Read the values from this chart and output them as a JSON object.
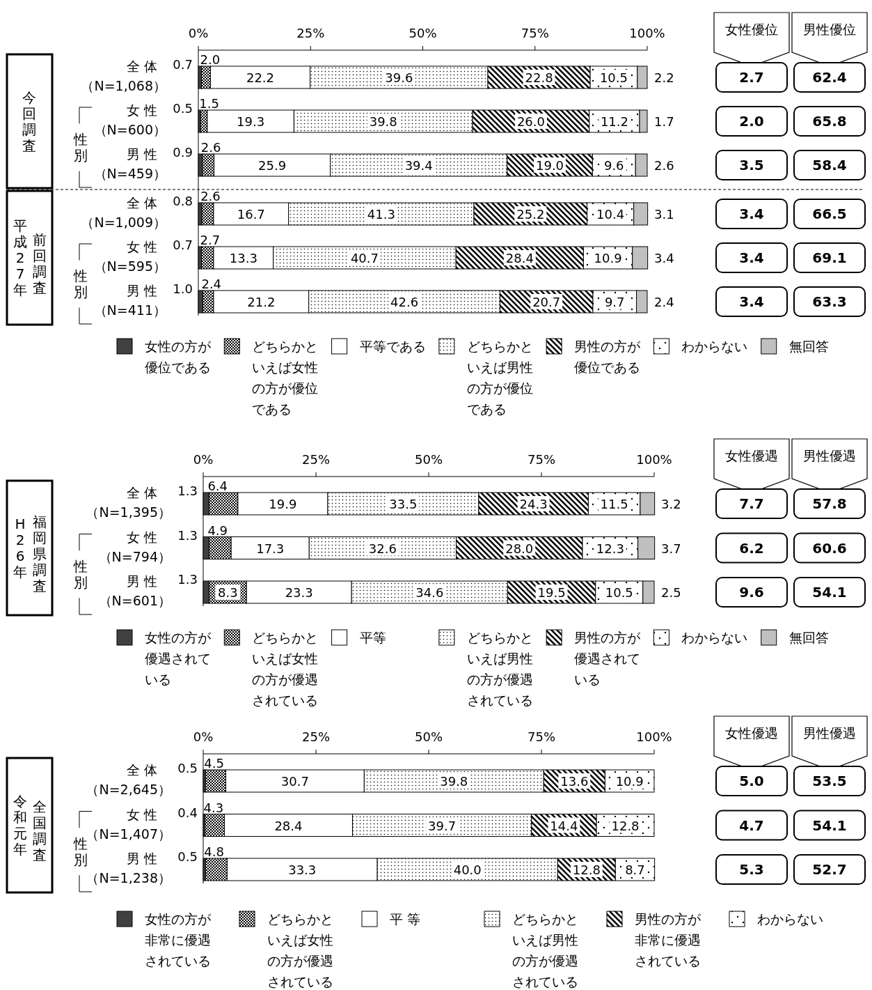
{
  "chart_data": [
    {
      "type": "bar",
      "orientation": "horizontal",
      "stacked": true,
      "legend": "bottom",
      "categories": [
        "全 体（N=1,068）",
        "女 性（N=600）",
        "男 性（N=459）",
        "全 体（N=1,009）",
        "女 性（N=595）",
        "男 性（N=411）"
      ],
      "xlim": [
        0,
        100
      ],
      "xticks": [
        {
          "value": 0,
          "label": "0%"
        },
        {
          "value": 25,
          "label": "25%"
        },
        {
          "value": 50,
          "label": "50%"
        },
        {
          "value": 75,
          "label": "75%"
        },
        {
          "value": 100,
          "label": "100%"
        }
      ],
      "series": [
        {
          "name": "女性の方が優位である",
          "color": "#404040",
          "values": [
            0.7,
            0.5,
            0.9,
            0.8,
            0.7,
            1.0
          ],
          "value_labels": [
            "0.7",
            "0.5",
            "0.9",
            "0.8",
            "0.7",
            "1.0"
          ]
        },
        {
          "name": "どちらかといえば女性の方が優位である",
          "color": "#000000",
          "values": [
            2.0,
            1.5,
            2.6,
            2.6,
            2.7,
            2.4
          ],
          "value_labels": [
            "2.0",
            "1.5",
            "2.6",
            "2.6",
            "2.7",
            "2.4"
          ]
        },
        {
          "name": "平等である",
          "color": "#ffffff",
          "values": [
            22.2,
            19.3,
            25.9,
            16.7,
            13.3,
            21.2
          ],
          "value_labels": [
            "22.2",
            "19.3",
            "25.9",
            "16.7",
            "13.3",
            "21.2"
          ]
        },
        {
          "name": "どちらかといえば男性の方が優位である",
          "color": "#000000",
          "values": [
            39.6,
            39.8,
            39.4,
            41.3,
            40.7,
            42.6
          ],
          "value_labels": [
            "39.6",
            "39.8",
            "39.4",
            "41.3",
            "40.7",
            "42.6"
          ]
        },
        {
          "name": "男性の方が優位である",
          "color": "#000000",
          "values": [
            22.8,
            26.0,
            19.0,
            25.2,
            28.4,
            20.7
          ],
          "value_labels": [
            "22.8",
            "26.0",
            "19.0",
            "25.2",
            "28.4",
            "20.7"
          ]
        },
        {
          "name": "わからない",
          "color": "#000000",
          "values": [
            10.5,
            11.2,
            9.6,
            10.4,
            10.9,
            9.7
          ],
          "value_labels": [
            "10.5",
            "11.2",
            "9.6",
            "10.4",
            "10.9",
            "9.7"
          ]
        },
        {
          "name": "無回答",
          "color": "#c0c0c0",
          "values": [
            2.2,
            1.7,
            2.6,
            3.1,
            3.4,
            2.4
          ],
          "value_labels": [
            "2.2",
            "1.7",
            "2.6",
            "3.1",
            "3.4",
            "2.4"
          ]
        }
      ],
      "annotations": [
        "今回調査",
        "平成27年",
        "前回調査",
        "性別",
        "性別",
        "女性優位",
        "男性優位",
        "2.7",
        "62.4",
        "2.0",
        "65.8",
        "3.5",
        "58.4",
        "3.4",
        "66.5",
        "3.4",
        "69.1",
        "3.4",
        "63.3"
      ]
    },
    {
      "type": "bar",
      "orientation": "horizontal",
      "stacked": true,
      "legend": "bottom",
      "categories": [
        "全 体（N=1,395）",
        "女 性（N=794）",
        "男 性（N=601）"
      ],
      "xlim": [
        0,
        100
      ],
      "xticks": [
        {
          "value": 0,
          "label": "0%"
        },
        {
          "value": 25,
          "label": "25%"
        },
        {
          "value": 50,
          "label": "50%"
        },
        {
          "value": 75,
          "label": "75%"
        },
        {
          "value": 100,
          "label": "100%"
        }
      ],
      "series": [
        {
          "name": "女性の方が優遇されている",
          "color": "#404040",
          "values": [
            1.3,
            1.3,
            1.3
          ],
          "value_labels": [
            "1.3",
            "1.3",
            "1.3"
          ]
        },
        {
          "name": "どちらかといえば女性の方が優遇されている",
          "color": "#000000",
          "values": [
            6.4,
            4.9,
            8.3
          ],
          "value_labels": [
            "6.4",
            "4.9",
            "8.3"
          ]
        },
        {
          "name": "平等",
          "color": "#ffffff",
          "values": [
            19.9,
            17.3,
            23.3
          ],
          "value_labels": [
            "19.9",
            "17.3",
            "23.3"
          ]
        },
        {
          "name": "どちらかといえば男性の方が優遇されている",
          "color": "#000000",
          "values": [
            33.5,
            32.6,
            34.6
          ],
          "value_labels": [
            "33.5",
            "32.6",
            "34.6"
          ]
        },
        {
          "name": "男性の方が優遇されている",
          "color": "#000000",
          "values": [
            24.3,
            28.0,
            19.5
          ],
          "value_labels": [
            "24.3",
            "28.0",
            "19.5"
          ]
        },
        {
          "name": "わからない",
          "color": "#000000",
          "values": [
            11.5,
            12.3,
            10.5
          ],
          "value_labels": [
            "11.5",
            "12.3",
            "10.5"
          ]
        },
        {
          "name": "無回答",
          "color": "#c0c0c0",
          "values": [
            3.2,
            3.7,
            2.5
          ],
          "value_labels": [
            "3.2",
            "3.7",
            "2.5"
          ]
        }
      ],
      "annotations": [
        "H26年",
        "福岡県調査",
        "性別",
        "女性優遇",
        "男性優遇",
        "7.7",
        "57.8",
        "6.2",
        "60.6",
        "9.6",
        "54.1"
      ]
    },
    {
      "type": "bar",
      "orientation": "horizontal",
      "stacked": true,
      "legend": "bottom",
      "categories": [
        "全 体（N=2,645）",
        "女 性（N=1,407）",
        "男 性（N=1,238）"
      ],
      "xlim": [
        0,
        100
      ],
      "xticks": [
        {
          "value": 0,
          "label": "0%"
        },
        {
          "value": 25,
          "label": "25%"
        },
        {
          "value": 50,
          "label": "50%"
        },
        {
          "value": 75,
          "label": "75%"
        },
        {
          "value": 100,
          "label": "100%"
        }
      ],
      "series": [
        {
          "name": "女性の方が非常に優遇されている",
          "color": "#404040",
          "values": [
            0.5,
            0.4,
            0.5
          ],
          "value_labels": [
            "0.5",
            "0.4",
            "0.5"
          ]
        },
        {
          "name": "どちらかといえば女性の方が優遇されている",
          "color": "#000000",
          "values": [
            4.5,
            4.3,
            4.8
          ],
          "value_labels": [
            "4.5",
            "4.3",
            "4.8"
          ]
        },
        {
          "name": "平 等",
          "color": "#ffffff",
          "values": [
            30.7,
            28.4,
            33.3
          ],
          "value_labels": [
            "30.7",
            "28.4",
            "33.3"
          ]
        },
        {
          "name": "どちらかといえば男性の方が優遇されている",
          "color": "#000000",
          "values": [
            39.8,
            39.7,
            40.0
          ],
          "value_labels": [
            "39.8",
            "39.7",
            "40.0"
          ]
        },
        {
          "name": "男性の方が非常に優遇されている",
          "color": "#000000",
          "values": [
            13.6,
            14.4,
            12.8
          ],
          "value_labels": [
            "13.6",
            "14.4",
            "12.8"
          ]
        },
        {
          "name": "わからない",
          "color": "#000000",
          "values": [
            10.9,
            12.8,
            8.7
          ],
          "value_labels": [
            "10.9",
            "12.8",
            "8.7"
          ]
        }
      ],
      "annotations": [
        "令和元年",
        "全国調査",
        "性別",
        "女性優遇",
        "男性優遇",
        "5.0",
        "53.5",
        "4.7",
        "54.1",
        "5.3",
        "52.7"
      ]
    }
  ]
}
